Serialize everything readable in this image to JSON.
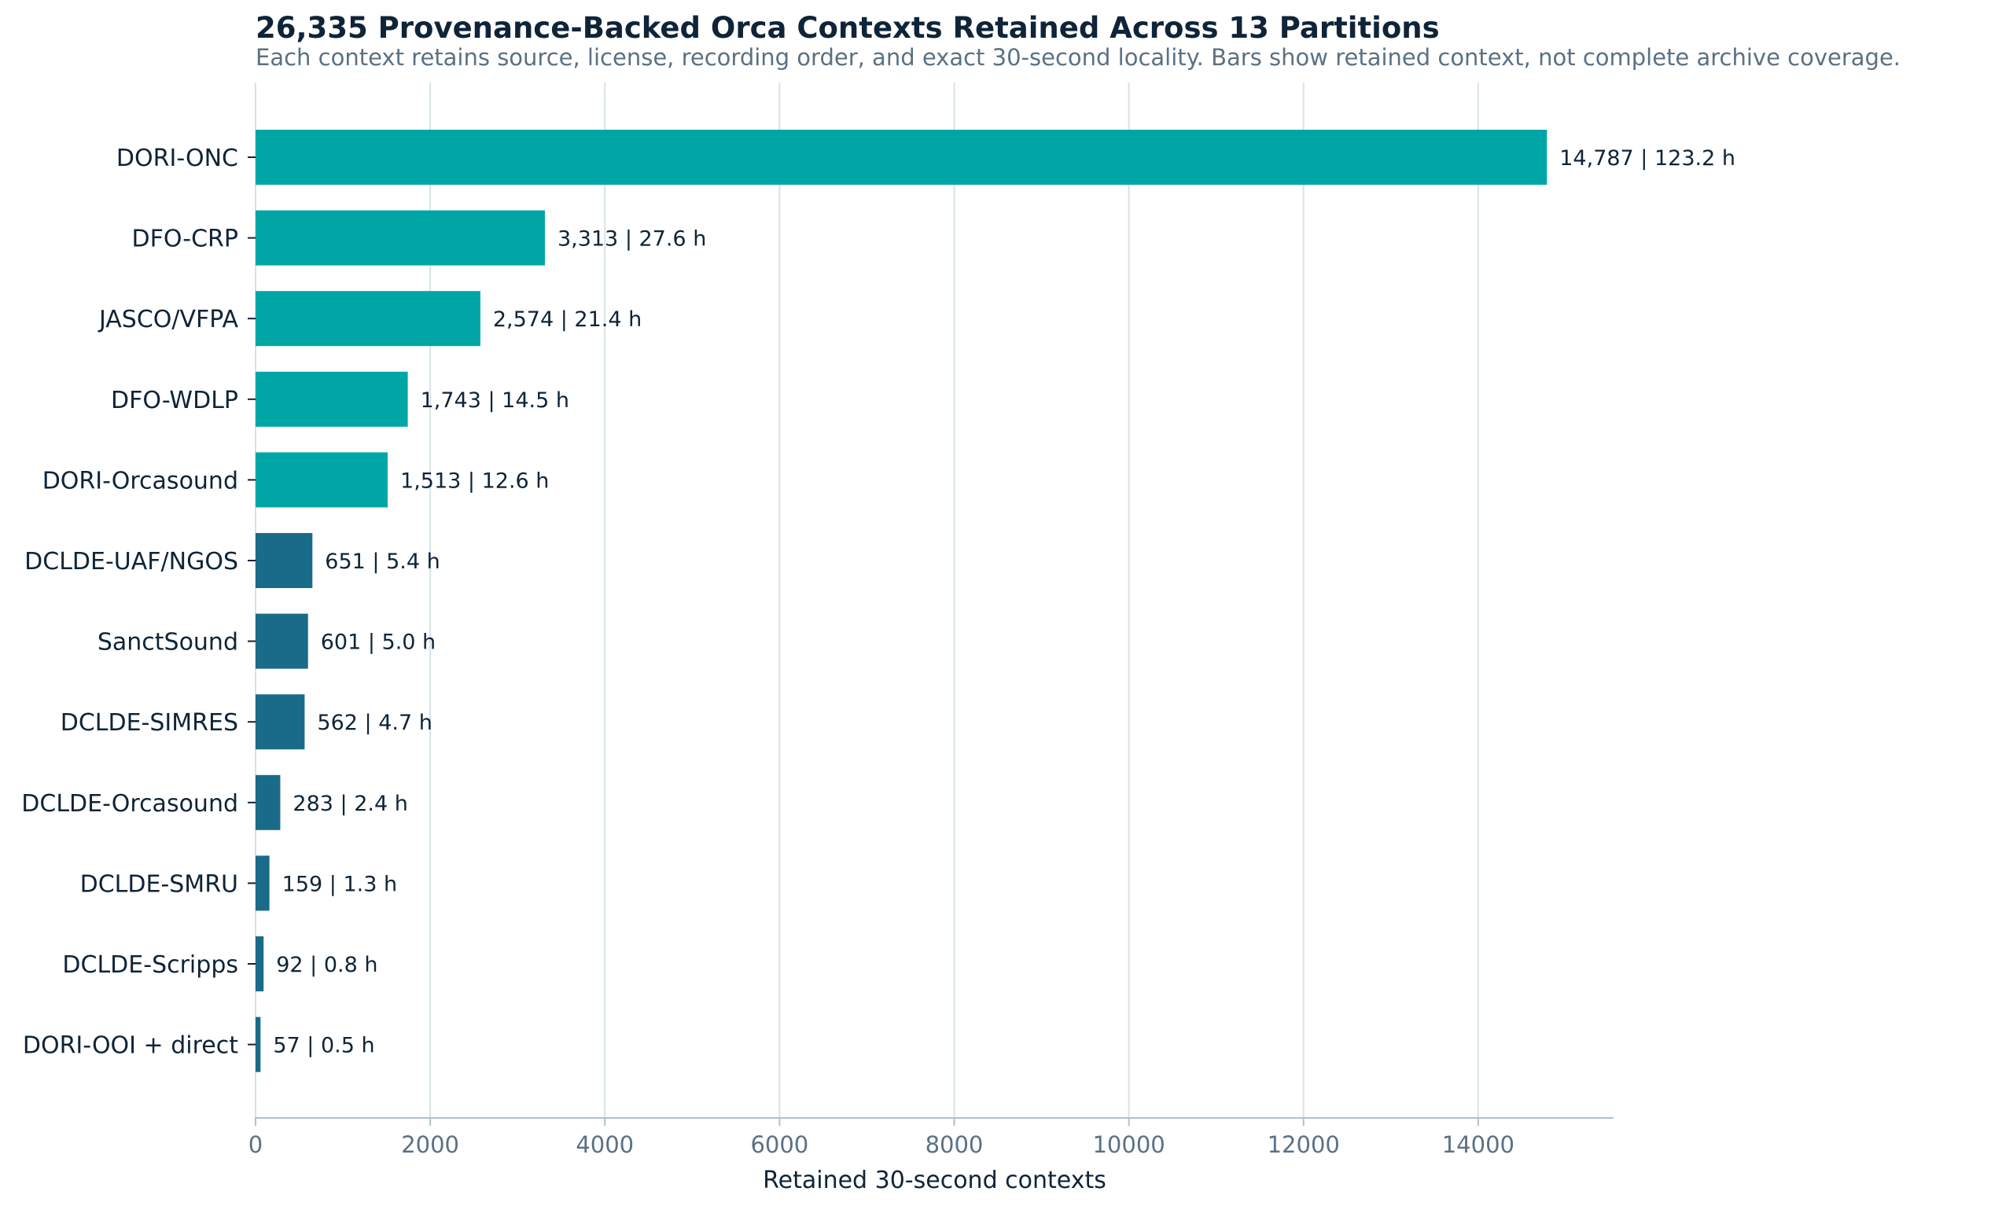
{
  "chart_data": {
    "type": "bar",
    "orientation": "horizontal",
    "title": "26,335 Provenance-Backed Orca Contexts Retained Across 13 Partitions",
    "subtitle": "Each context retains source, license, recording order, and exact 30-second locality. Bars show retained context, not complete archive coverage.",
    "xlabel": "Retained 30-second contexts",
    "ylabel": "",
    "xlim": [
      0,
      15550
    ],
    "xticks": [
      0,
      2000,
      4000,
      6000,
      8000,
      10000,
      12000,
      14000
    ],
    "grid": "vertical",
    "categories": [
      "DORI-ONC",
      "DFO-CRP",
      "JASCO/VFPA",
      "DFO-WDLP",
      "DORI-Orcasound",
      "DCLDE-UAF/NGOS",
      "SanctSound",
      "DCLDE-SIMRES",
      "DCLDE-Orcasound",
      "DCLDE-SMRU",
      "DCLDE-Scripps",
      "DORI-OOI + direct"
    ],
    "values": [
      14787,
      3313,
      2574,
      1743,
      1513,
      651,
      601,
      562,
      283,
      159,
      92,
      57
    ],
    "data_labels": [
      "14,787  |  123.2 h",
      "3,313  |  27.6 h",
      "2,574  |  21.4 h",
      "1,743  |  14.5 h",
      "1,513  |  12.6 h",
      "651  |  5.4 h",
      "601  |  5.0 h",
      "562  |  4.7 h",
      "283  |  2.4 h",
      "159  |  1.3 h",
      "92  |  0.8 h",
      "57  |  0.5 h"
    ],
    "bar_colors": [
      "#00a6a6",
      "#00a6a6",
      "#00a6a6",
      "#00a6a6",
      "#00a6a6",
      "#1a6b8a",
      "#1a6b8a",
      "#1a6b8a",
      "#1a6b8a",
      "#1a6b8a",
      "#1a6b8a",
      "#1a6b8a"
    ]
  },
  "colors": {
    "primary": "#00a6a6",
    "secondary": "#1a6b8a",
    "grid": "#d6e3e6",
    "axis": "#a9c3cc",
    "text": "#0f2438",
    "muted": "#5b7183"
  }
}
